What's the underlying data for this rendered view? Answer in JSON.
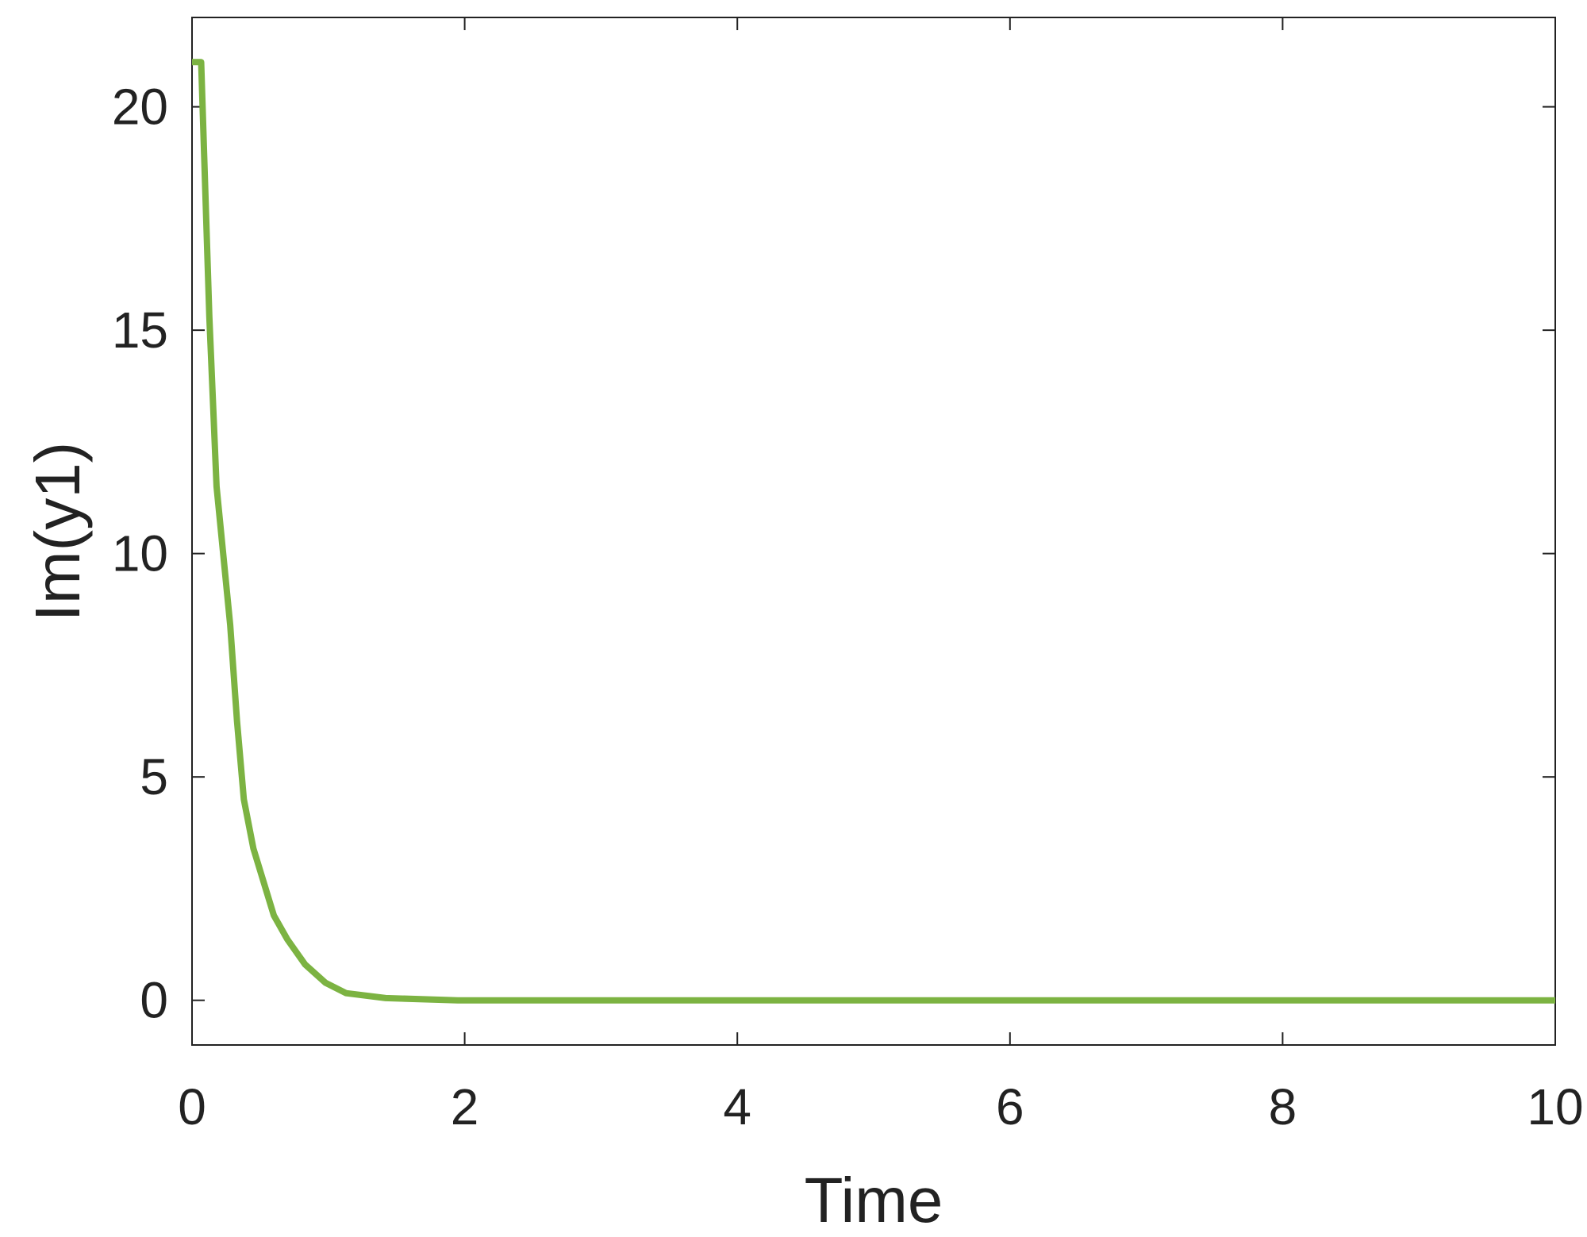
{
  "chart_data": {
    "type": "line",
    "x_label": "Time",
    "y_label": "Im(y1)",
    "x": [
      0,
      0.067,
      0.127,
      0.18,
      0.28,
      0.33,
      0.38,
      0.45,
      0.53,
      0.6,
      0.7,
      0.83,
      0.98,
      1.13,
      1.42,
      1.95,
      10
    ],
    "series": [
      {
        "color": "#7cb342",
        "values": [
          21,
          21,
          15.3,
          11.5,
          8.4,
          6.25,
          4.5,
          3.4,
          2.6,
          1.9,
          1.36,
          0.8,
          0.39,
          0.16,
          0.05,
          0,
          0
        ]
      }
    ],
    "xlim": [
      0,
      10
    ],
    "xticks": [
      0,
      2,
      4,
      6,
      8,
      10
    ],
    "ylim": [
      -1,
      22
    ],
    "yticks": [
      0,
      5,
      10,
      15,
      20
    ],
    "grid": false
  }
}
